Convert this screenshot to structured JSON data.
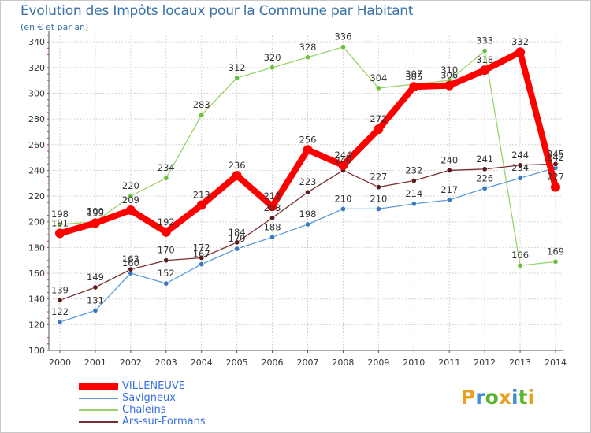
{
  "title": "Evolution des Impôts locaux pour la Commune par Habitant",
  "subtitle": "(en € et par an)",
  "brand": {
    "letters": [
      "P",
      "r",
      "o",
      "x",
      "i",
      "t",
      "i"
    ],
    "colors": [
      "#e8a020",
      "#3d8fd6",
      "#5ab432",
      "#e8a020",
      "#3d8fd6",
      "#5ab432",
      "#e8a020"
    ]
  },
  "chart_data": {
    "type": "line",
    "title": "Evolution des Impôts locaux pour la Commune par Habitant",
    "subtitle": "(en € et par an)",
    "x": [
      2000,
      2001,
      2002,
      2003,
      2004,
      2005,
      2006,
      2007,
      2008,
      2009,
      2010,
      2011,
      2012,
      2013,
      2014
    ],
    "x_tick_labels": [
      "2000",
      "2001",
      "2002",
      "2003",
      "2004",
      "2005",
      "2006",
      "2007",
      "2008",
      "2009",
      "2010",
      "2011",
      "2012",
      "2013",
      "2014"
    ],
    "ylim": [
      100,
      345
    ],
    "y_ticks": [
      100,
      120,
      140,
      160,
      180,
      200,
      220,
      240,
      260,
      280,
      300,
      320,
      340
    ],
    "y_tick_labels": [
      "100",
      "120",
      "140",
      "160",
      "180",
      "200",
      "220",
      "240",
      "260",
      "280",
      "300",
      "320",
      "340"
    ],
    "grid": true,
    "legend_position": "bottom-left",
    "series": [
      {
        "name": "Savigneux",
        "color": "#5b9bd5",
        "point_color": "#3a7bbf",
        "values": [
          122,
          131,
          160,
          152,
          167,
          179,
          188,
          198,
          210,
          210,
          214,
          217,
          226,
          234,
          242
        ],
        "labels": [
          "122",
          "131",
          "160",
          "152",
          "167",
          "179",
          "188",
          "198",
          "210",
          "210",
          "214",
          "217",
          "226",
          "234",
          "242"
        ]
      },
      {
        "name": "Chaleins",
        "color": "#9ad36a",
        "point_color": "#6cc040",
        "values": [
          198,
          200,
          220,
          234,
          283,
          312,
          320,
          328,
          336,
          304,
          307,
          310,
          333,
          166,
          169
        ],
        "labels": [
          "198",
          "200",
          "220",
          "234",
          "283",
          "312",
          "320",
          "328",
          "336",
          "304",
          "307",
          "310",
          "333",
          "166",
          "169"
        ]
      },
      {
        "name": "Ars-sur-Formans",
        "color": "#7b2d2d",
        "point_color": "#5e1a1a",
        "values": [
          139,
          149,
          163,
          170,
          172,
          184,
          203,
          223,
          240,
          227,
          232,
          240,
          241,
          244,
          245
        ],
        "labels": [
          "139",
          "149",
          "163",
          "170",
          "172",
          "184",
          "203",
          "223",
          "240",
          "227",
          "232",
          "240",
          "241",
          "244",
          "245"
        ]
      },
      {
        "name": "VILLENEUVE",
        "color": "#ff0000",
        "point_color": "#ff0000",
        "values": [
          191,
          199,
          209,
          192,
          213,
          236,
          212,
          256,
          244,
          272,
          305,
          306,
          318,
          332,
          227
        ],
        "labels": [
          "191",
          "199",
          "209",
          "192",
          "213",
          "236",
          "212",
          "256",
          "244",
          "272",
          "305",
          "306",
          "318",
          "332",
          "227"
        ]
      }
    ],
    "legend": [
      {
        "name": "VILLENEUVE",
        "color": "#ff0000",
        "text_color": "#3a6fe0"
      },
      {
        "name": "Savigneux",
        "color": "#5b9bd5",
        "text_color": "#3a6fe0"
      },
      {
        "name": "Chaleins",
        "color": "#9ad36a",
        "text_color": "#3a6fe0"
      },
      {
        "name": "Ars-sur-Formans",
        "color": "#7b2d2d",
        "text_color": "#3a6fe0"
      }
    ]
  }
}
